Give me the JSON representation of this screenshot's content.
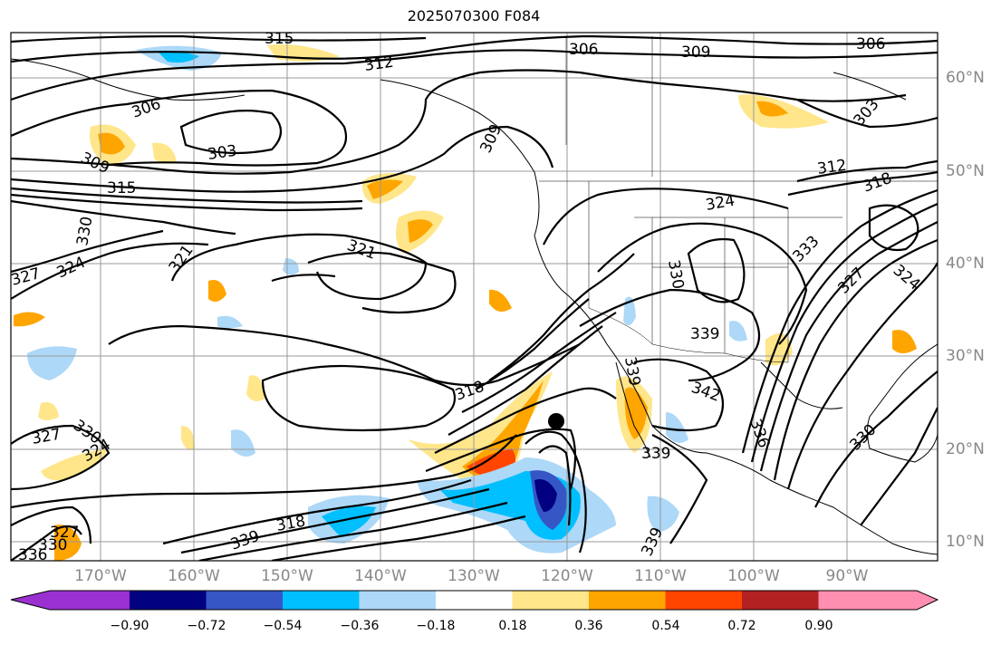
{
  "title": "2025070300 F084",
  "map": {
    "projection": "mercator",
    "region": "North Pacific / North America",
    "contour_color": "#000000",
    "storm_marker": "black-dot",
    "contour_labels": [
      "315",
      "312",
      "306",
      "309",
      "306",
      "306",
      "303",
      "309",
      "315",
      "330",
      "324",
      "327",
      "321",
      "321",
      "309",
      "318",
      "324",
      "312",
      "318",
      "303",
      "333",
      "327",
      "324",
      "330",
      "339",
      "342",
      "339",
      "336",
      "339",
      "318",
      "327",
      "330",
      "327",
      "336",
      "339",
      "324",
      "330",
      "330",
      "339",
      "321",
      "339"
    ]
  },
  "lat_labels": [
    "60°N",
    "50°N",
    "40°N",
    "30°N",
    "20°N",
    "10°N"
  ],
  "lon_labels": [
    "170°W",
    "160°W",
    "150°W",
    "140°W",
    "130°W",
    "120°W",
    "110°W",
    "100°W",
    "90°W"
  ],
  "colorbar": {
    "tick_labels": [
      "−0.90",
      "−0.72",
      "−0.54",
      "−0.36",
      "−0.18",
      "0.18",
      "0.36",
      "0.54",
      "0.72",
      "0.90"
    ],
    "bins": [
      {
        "color": "#9b30d0",
        "range": "< -0.90"
      },
      {
        "color": "#000080",
        "range": "-0.90 to -0.72"
      },
      {
        "color": "#3656c6",
        "range": "-0.72 to -0.54"
      },
      {
        "color": "#00bfff",
        "range": "-0.54 to -0.36"
      },
      {
        "color": "#add8f8",
        "range": "-0.36 to -0.18"
      },
      {
        "color": "#ffffff",
        "range": "-0.18 to 0.18"
      },
      {
        "color": "#ffe68a",
        "range": "0.18 to 0.36"
      },
      {
        "color": "#ffa500",
        "range": "0.36 to 0.54"
      },
      {
        "color": "#ff4500",
        "range": "0.54 to 0.72"
      },
      {
        "color": "#b22222",
        "range": "0.72 to 0.90"
      },
      {
        "color": "#ff8fb0",
        "range": "> 0.90"
      }
    ]
  }
}
